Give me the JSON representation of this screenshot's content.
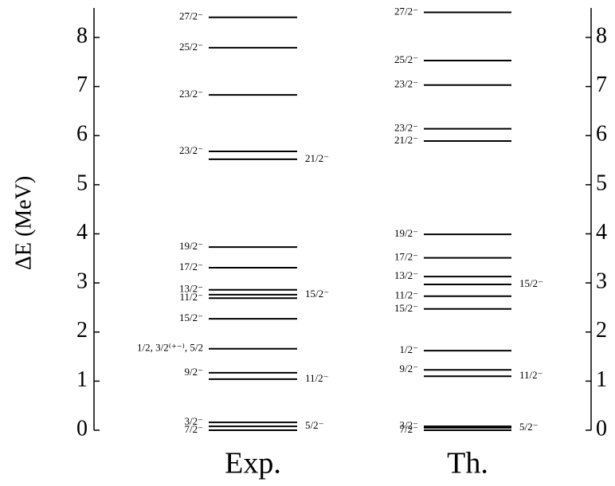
{
  "chart_data": {
    "type": "level-scheme",
    "ylabel": "ΔE (MeV)",
    "ylim": [
      0,
      8.6
    ],
    "yticks": [
      0,
      1,
      2,
      3,
      4,
      5,
      6,
      7,
      8
    ],
    "color": "#000000",
    "series": [
      {
        "name": "Exp.",
        "values": [
          8.41,
          7.79,
          6.83,
          5.68,
          5.52,
          3.73,
          3.31,
          2.86,
          2.69,
          2.76,
          2.27,
          1.66,
          1.17,
          1.04,
          0.16,
          0.08,
          0
        ],
        "labels": [
          "27/2⁻",
          "25/2⁻",
          "23/2⁻",
          "23/2⁻",
          "21/2⁻",
          "19/2⁻",
          "17/2⁻",
          "13/2⁻",
          "11/2⁻",
          "15/2⁻",
          "15/2⁻",
          "1/2, 3/2⁽⁺⁻⁾, 5/2",
          "9/2⁻",
          "11/2⁻",
          "3/2⁻",
          "5/2⁻",
          "7/2⁻"
        ],
        "label_sides": [
          "left",
          "left",
          "left",
          "left",
          "right",
          "left",
          "left",
          "left",
          "left",
          "right",
          "left",
          "left",
          "left",
          "right",
          "left",
          "right",
          "left"
        ]
      },
      {
        "name": "Th.",
        "values": [
          8.51,
          7.53,
          7.03,
          6.14,
          5.89,
          3.99,
          3.51,
          3.13,
          2.97,
          2.73,
          2.47,
          1.62,
          1.23,
          1.1,
          0.08,
          0.05,
          0
        ],
        "labels": [
          "27/2⁻",
          "25/2⁻",
          "23/2⁻",
          "23/2⁻",
          "21/2⁻",
          "19/2⁻",
          "17/2⁻",
          "13/2⁻",
          "15/2⁻",
          "11/2⁻",
          "15/2⁻",
          "1/2⁻",
          "9/2⁻",
          "11/2⁻",
          "3/2⁻",
          "5/2⁻",
          "7/2⁻"
        ],
        "label_sides": [
          "left",
          "left",
          "left",
          "left",
          "left",
          "left",
          "left",
          "left",
          "right",
          "left",
          "left",
          "left",
          "left",
          "right",
          "left",
          "right",
          "left"
        ]
      }
    ]
  }
}
